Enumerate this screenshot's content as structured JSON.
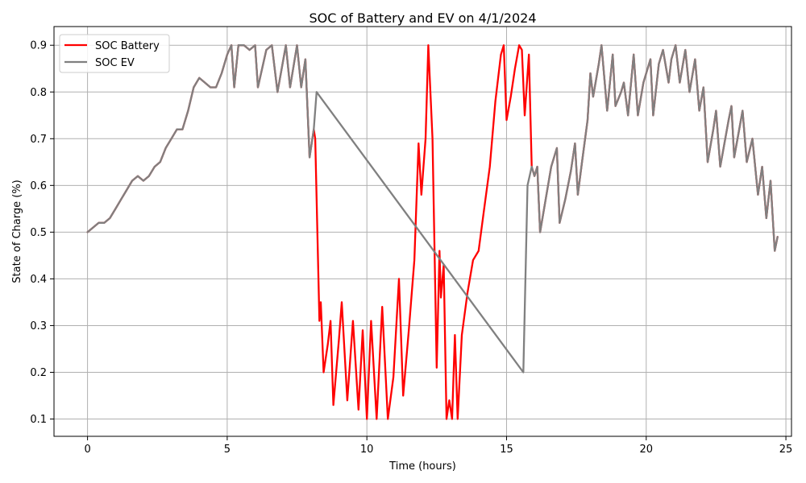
{
  "chart_data": {
    "type": "line",
    "title": "SOC of Battery and EV on 4/1/2024",
    "xlabel": "Time (hours)",
    "ylabel": "State of Charge (%)",
    "xlim": [
      -1.2,
      25.2
    ],
    "ylim": [
      0.063,
      0.94
    ],
    "x_ticks": [
      0,
      5,
      10,
      15,
      20,
      25
    ],
    "y_ticks": [
      0.1,
      0.2,
      0.3,
      0.4,
      0.5,
      0.6,
      0.7,
      0.8,
      0.9
    ],
    "x_tick_labels": [
      "0",
      "5",
      "10",
      "15",
      "20",
      "25"
    ],
    "y_tick_labels": [
      "0.1",
      "0.2",
      "0.3",
      "0.4",
      "0.5",
      "0.6",
      "0.7",
      "0.8",
      "0.9"
    ],
    "grid": true,
    "legend_position": "top-left",
    "series": [
      {
        "name": "SOC Battery",
        "color": "#ff0000",
        "points": [
          [
            0,
            0.5
          ],
          [
            0.2,
            0.51
          ],
          [
            0.4,
            0.52
          ],
          [
            0.6,
            0.52
          ],
          [
            0.8,
            0.53
          ],
          [
            1.0,
            0.55
          ],
          [
            1.2,
            0.57
          ],
          [
            1.4,
            0.59
          ],
          [
            1.6,
            0.61
          ],
          [
            1.8,
            0.62
          ],
          [
            2.0,
            0.61
          ],
          [
            2.2,
            0.62
          ],
          [
            2.4,
            0.64
          ],
          [
            2.6,
            0.65
          ],
          [
            2.8,
            0.68
          ],
          [
            3.0,
            0.7
          ],
          [
            3.2,
            0.72
          ],
          [
            3.4,
            0.72
          ],
          [
            3.6,
            0.76
          ],
          [
            3.8,
            0.81
          ],
          [
            4.0,
            0.83
          ],
          [
            4.2,
            0.82
          ],
          [
            4.4,
            0.81
          ],
          [
            4.6,
            0.81
          ],
          [
            4.8,
            0.84
          ],
          [
            5.0,
            0.88
          ],
          [
            5.15,
            0.9
          ],
          [
            5.25,
            0.81
          ],
          [
            5.4,
            0.9
          ],
          [
            5.6,
            0.9
          ],
          [
            5.8,
            0.89
          ],
          [
            6.0,
            0.9
          ],
          [
            6.1,
            0.81
          ],
          [
            6.4,
            0.89
          ],
          [
            6.6,
            0.9
          ],
          [
            6.8,
            0.8
          ],
          [
            7.1,
            0.9
          ],
          [
            7.25,
            0.81
          ],
          [
            7.5,
            0.9
          ],
          [
            7.65,
            0.81
          ],
          [
            7.8,
            0.87
          ],
          [
            7.95,
            0.66
          ],
          [
            8.1,
            0.72
          ],
          [
            8.15,
            0.7
          ],
          [
            8.3,
            0.31
          ],
          [
            8.35,
            0.35
          ],
          [
            8.45,
            0.2
          ],
          [
            8.6,
            0.26
          ],
          [
            8.7,
            0.31
          ],
          [
            8.8,
            0.13
          ],
          [
            9.0,
            0.27
          ],
          [
            9.1,
            0.35
          ],
          [
            9.3,
            0.14
          ],
          [
            9.5,
            0.31
          ],
          [
            9.7,
            0.12
          ],
          [
            9.85,
            0.29
          ],
          [
            10.0,
            0.1
          ],
          [
            10.15,
            0.31
          ],
          [
            10.35,
            0.1
          ],
          [
            10.55,
            0.34
          ],
          [
            10.75,
            0.1
          ],
          [
            10.95,
            0.19
          ],
          [
            11.15,
            0.4
          ],
          [
            11.3,
            0.15
          ],
          [
            11.5,
            0.29
          ],
          [
            11.7,
            0.44
          ],
          [
            11.85,
            0.69
          ],
          [
            11.95,
            0.58
          ],
          [
            12.1,
            0.7
          ],
          [
            12.2,
            0.9
          ],
          [
            12.35,
            0.7
          ],
          [
            12.5,
            0.21
          ],
          [
            12.6,
            0.46
          ],
          [
            12.65,
            0.36
          ],
          [
            12.75,
            0.43
          ],
          [
            12.85,
            0.1
          ],
          [
            12.95,
            0.14
          ],
          [
            13.05,
            0.1
          ],
          [
            13.15,
            0.28
          ],
          [
            13.25,
            0.1
          ],
          [
            13.4,
            0.28
          ],
          [
            13.6,
            0.37
          ],
          [
            13.8,
            0.44
          ],
          [
            14.0,
            0.46
          ],
          [
            14.2,
            0.55
          ],
          [
            14.4,
            0.64
          ],
          [
            14.6,
            0.78
          ],
          [
            14.8,
            0.88
          ],
          [
            14.9,
            0.9
          ],
          [
            15.0,
            0.74
          ],
          [
            15.15,
            0.79
          ],
          [
            15.3,
            0.85
          ],
          [
            15.45,
            0.9
          ],
          [
            15.55,
            0.89
          ],
          [
            15.65,
            0.75
          ],
          [
            15.8,
            0.88
          ],
          [
            15.9,
            0.64
          ],
          [
            16.0,
            0.62
          ],
          [
            16.1,
            0.64
          ],
          [
            16.2,
            0.5
          ],
          [
            16.4,
            0.57
          ],
          [
            16.6,
            0.64
          ],
          [
            16.8,
            0.68
          ],
          [
            16.9,
            0.52
          ],
          [
            17.1,
            0.57
          ],
          [
            17.3,
            0.63
          ],
          [
            17.45,
            0.69
          ],
          [
            17.55,
            0.58
          ],
          [
            17.7,
            0.65
          ],
          [
            17.9,
            0.74
          ],
          [
            18.0,
            0.84
          ],
          [
            18.1,
            0.79
          ],
          [
            18.3,
            0.86
          ],
          [
            18.4,
            0.9
          ],
          [
            18.6,
            0.76
          ],
          [
            18.8,
            0.88
          ],
          [
            18.9,
            0.77
          ],
          [
            19.1,
            0.8
          ],
          [
            19.2,
            0.82
          ],
          [
            19.35,
            0.75
          ],
          [
            19.55,
            0.88
          ],
          [
            19.7,
            0.75
          ],
          [
            19.9,
            0.82
          ],
          [
            20.15,
            0.87
          ],
          [
            20.25,
            0.75
          ],
          [
            20.45,
            0.86
          ],
          [
            20.6,
            0.89
          ],
          [
            20.8,
            0.82
          ],
          [
            20.9,
            0.87
          ],
          [
            21.05,
            0.9
          ],
          [
            21.2,
            0.82
          ],
          [
            21.4,
            0.89
          ],
          [
            21.55,
            0.8
          ],
          [
            21.75,
            0.87
          ],
          [
            21.9,
            0.76
          ],
          [
            22.05,
            0.81
          ],
          [
            22.2,
            0.65
          ],
          [
            22.4,
            0.72
          ],
          [
            22.5,
            0.76
          ],
          [
            22.65,
            0.64
          ],
          [
            22.8,
            0.69
          ],
          [
            22.95,
            0.74
          ],
          [
            23.05,
            0.77
          ],
          [
            23.15,
            0.66
          ],
          [
            23.3,
            0.71
          ],
          [
            23.45,
            0.76
          ],
          [
            23.6,
            0.65
          ],
          [
            23.8,
            0.7
          ],
          [
            24.0,
            0.58
          ],
          [
            24.15,
            0.64
          ],
          [
            24.3,
            0.53
          ],
          [
            24.45,
            0.61
          ],
          [
            24.6,
            0.46
          ],
          [
            24.7,
            0.49
          ]
        ]
      },
      {
        "name": "SOC EV",
        "color": "#808080",
        "points": [
          [
            0,
            0.5
          ],
          [
            0.2,
            0.51
          ],
          [
            0.4,
            0.52
          ],
          [
            0.6,
            0.52
          ],
          [
            0.8,
            0.53
          ],
          [
            1.0,
            0.55
          ],
          [
            1.2,
            0.57
          ],
          [
            1.4,
            0.59
          ],
          [
            1.6,
            0.61
          ],
          [
            1.8,
            0.62
          ],
          [
            2.0,
            0.61
          ],
          [
            2.2,
            0.62
          ],
          [
            2.4,
            0.64
          ],
          [
            2.6,
            0.65
          ],
          [
            2.8,
            0.68
          ],
          [
            3.0,
            0.7
          ],
          [
            3.2,
            0.72
          ],
          [
            3.4,
            0.72
          ],
          [
            3.6,
            0.76
          ],
          [
            3.8,
            0.81
          ],
          [
            4.0,
            0.83
          ],
          [
            4.2,
            0.82
          ],
          [
            4.4,
            0.81
          ],
          [
            4.6,
            0.81
          ],
          [
            4.8,
            0.84
          ],
          [
            5.0,
            0.88
          ],
          [
            5.15,
            0.9
          ],
          [
            5.25,
            0.81
          ],
          [
            5.4,
            0.9
          ],
          [
            5.6,
            0.9
          ],
          [
            5.8,
            0.89
          ],
          [
            6.0,
            0.9
          ],
          [
            6.1,
            0.81
          ],
          [
            6.4,
            0.89
          ],
          [
            6.6,
            0.9
          ],
          [
            6.8,
            0.8
          ],
          [
            7.1,
            0.9
          ],
          [
            7.25,
            0.81
          ],
          [
            7.5,
            0.9
          ],
          [
            7.65,
            0.81
          ],
          [
            7.8,
            0.87
          ],
          [
            7.95,
            0.66
          ],
          [
            8.1,
            0.72
          ],
          [
            8.2,
            0.8
          ],
          [
            15.6,
            0.2
          ],
          [
            15.75,
            0.6
          ],
          [
            15.9,
            0.64
          ],
          [
            16.0,
            0.62
          ],
          [
            16.1,
            0.64
          ],
          [
            16.2,
            0.5
          ],
          [
            16.4,
            0.57
          ],
          [
            16.6,
            0.64
          ],
          [
            16.8,
            0.68
          ],
          [
            16.9,
            0.52
          ],
          [
            17.1,
            0.57
          ],
          [
            17.3,
            0.63
          ],
          [
            17.45,
            0.69
          ],
          [
            17.55,
            0.58
          ],
          [
            17.7,
            0.65
          ],
          [
            17.9,
            0.74
          ],
          [
            18.0,
            0.84
          ],
          [
            18.1,
            0.79
          ],
          [
            18.3,
            0.86
          ],
          [
            18.4,
            0.9
          ],
          [
            18.6,
            0.76
          ],
          [
            18.8,
            0.88
          ],
          [
            18.9,
            0.77
          ],
          [
            19.1,
            0.8
          ],
          [
            19.2,
            0.82
          ],
          [
            19.35,
            0.75
          ],
          [
            19.55,
            0.88
          ],
          [
            19.7,
            0.75
          ],
          [
            19.9,
            0.82
          ],
          [
            20.15,
            0.87
          ],
          [
            20.25,
            0.75
          ],
          [
            20.45,
            0.86
          ],
          [
            20.6,
            0.89
          ],
          [
            20.8,
            0.82
          ],
          [
            20.9,
            0.87
          ],
          [
            21.05,
            0.9
          ],
          [
            21.2,
            0.82
          ],
          [
            21.4,
            0.89
          ],
          [
            21.55,
            0.8
          ],
          [
            21.75,
            0.87
          ],
          [
            21.9,
            0.76
          ],
          [
            22.05,
            0.81
          ],
          [
            22.2,
            0.65
          ],
          [
            22.4,
            0.72
          ],
          [
            22.5,
            0.76
          ],
          [
            22.65,
            0.64
          ],
          [
            22.8,
            0.69
          ],
          [
            22.95,
            0.74
          ],
          [
            23.05,
            0.77
          ],
          [
            23.15,
            0.66
          ],
          [
            23.3,
            0.71
          ],
          [
            23.45,
            0.76
          ],
          [
            23.6,
            0.65
          ],
          [
            23.8,
            0.7
          ],
          [
            24.0,
            0.58
          ],
          [
            24.15,
            0.64
          ],
          [
            24.3,
            0.53
          ],
          [
            24.45,
            0.61
          ],
          [
            24.6,
            0.46
          ],
          [
            24.7,
            0.49
          ]
        ]
      }
    ]
  }
}
